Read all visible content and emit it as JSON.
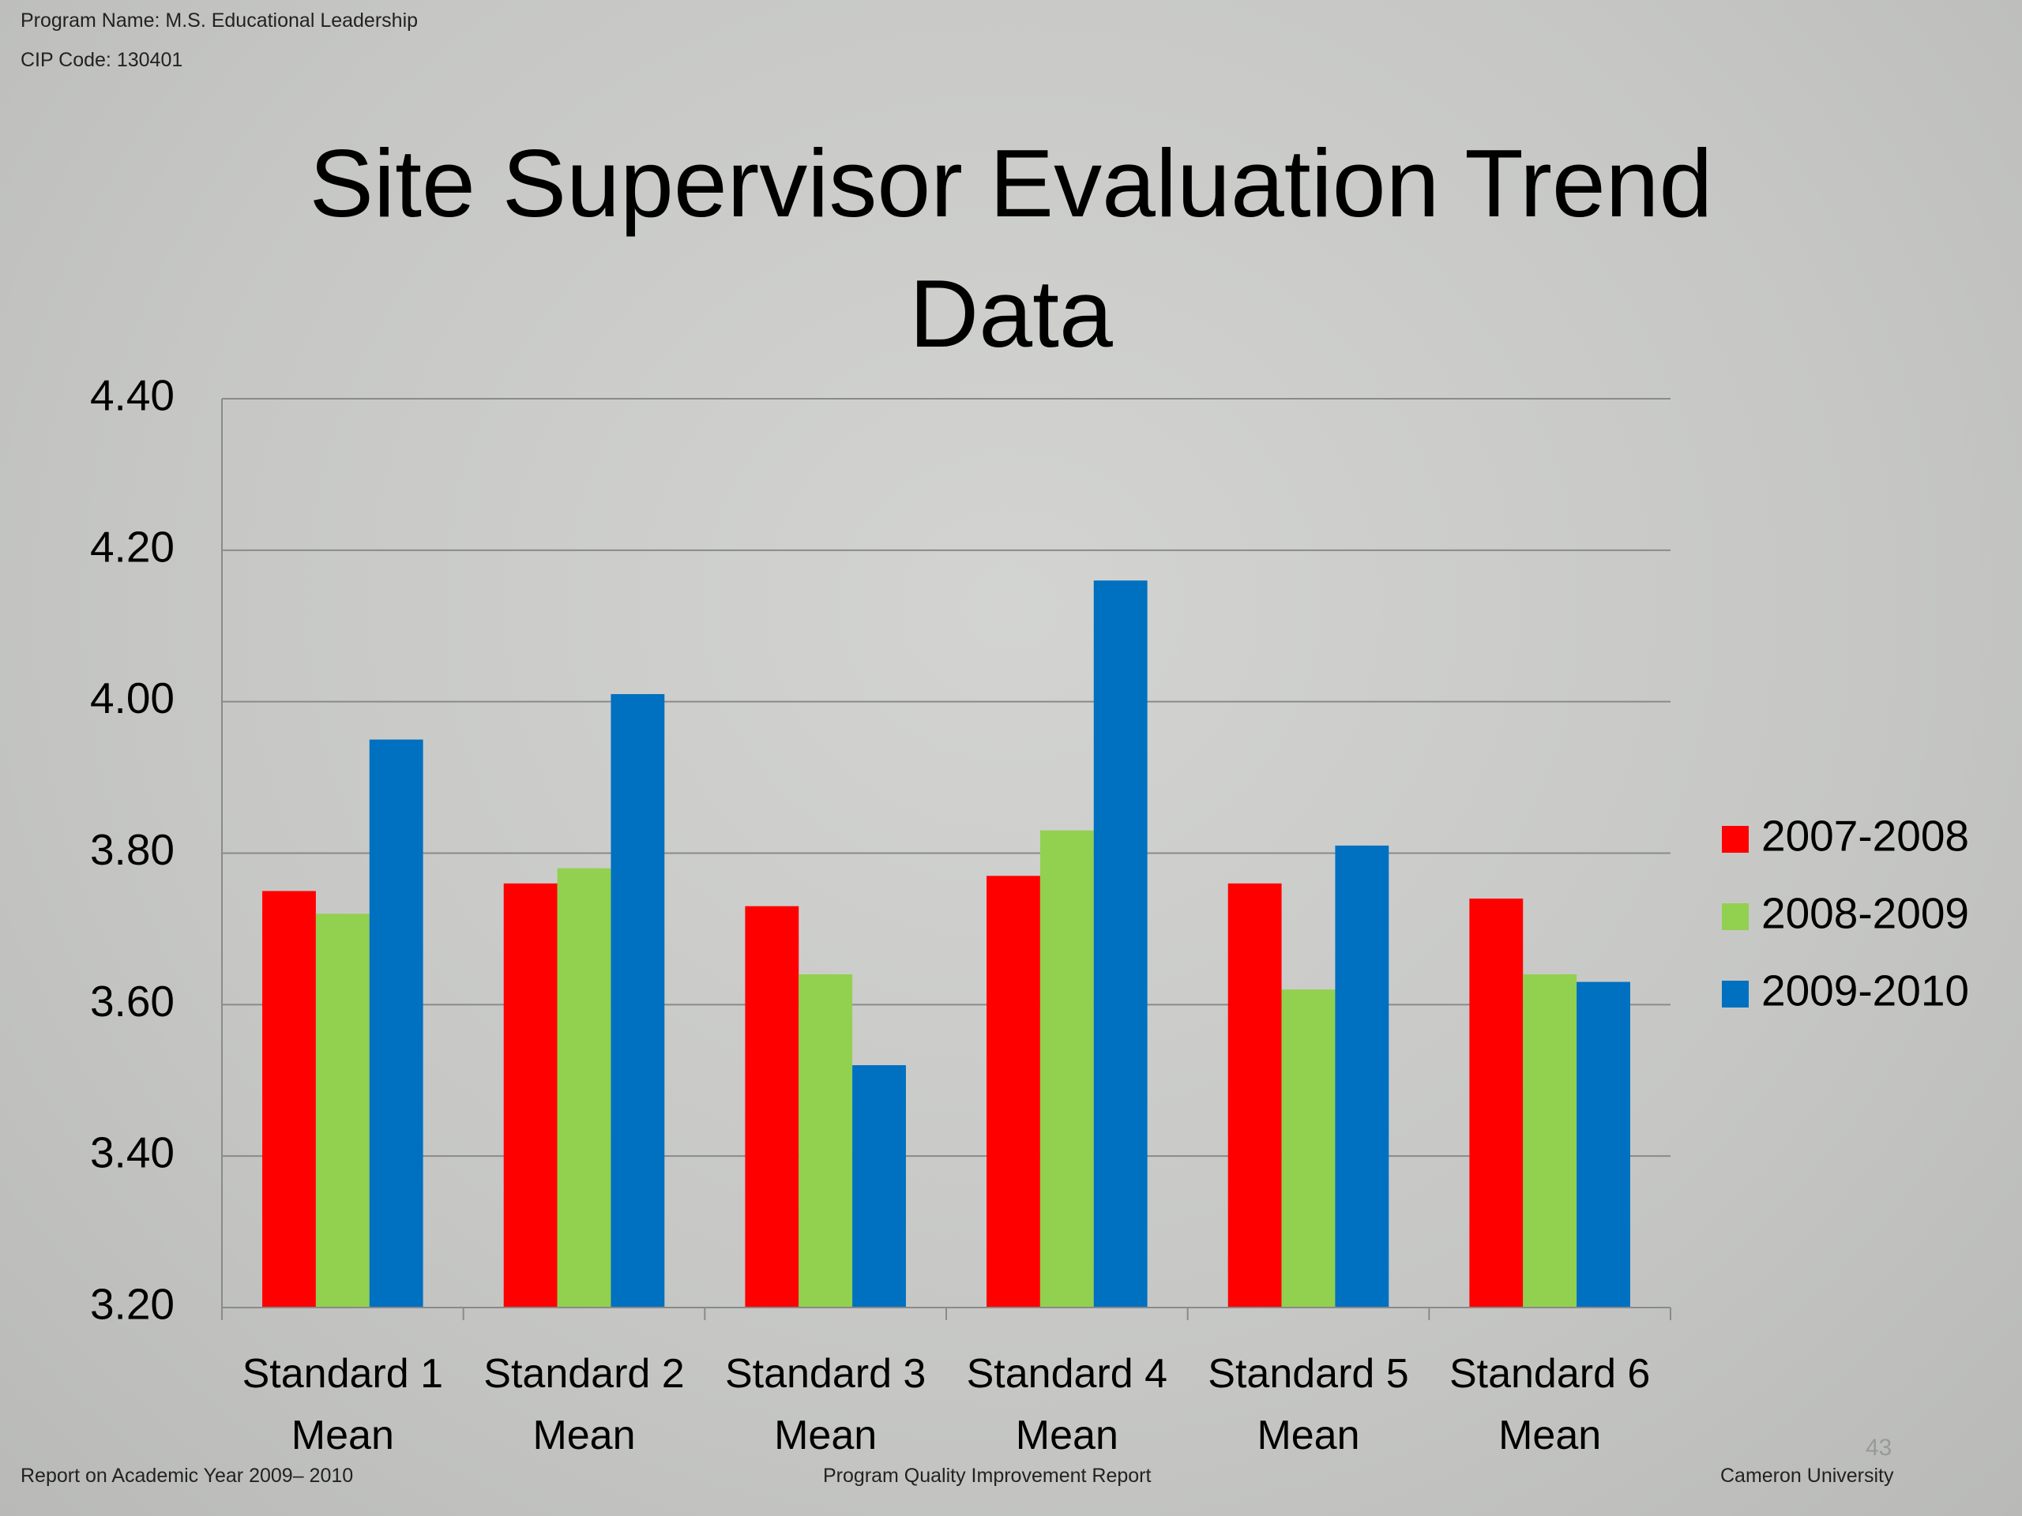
{
  "slide": {
    "program": "Program Name: M.S. Educational Leadership",
    "cip": "CIP Code: 130401",
    "footer_left": "Report on Academic Year 2009– 2010",
    "footer_center": "Program Quality Improvement Report",
    "footer_right": "Cameron University",
    "page_number": "43"
  },
  "chart_data": {
    "type": "bar",
    "title": "Site Supervisor Evaluation Trend Data",
    "categories": [
      "Standard 1 Mean",
      "Standard 2 Mean",
      "Standard 3 Mean",
      "Standard 4 Mean",
      "Standard 5 Mean",
      "Standard 6 Mean"
    ],
    "series": [
      {
        "name": "2007-2008",
        "color": "#ff0000",
        "values": [
          3.75,
          3.76,
          3.73,
          3.77,
          3.76,
          3.74
        ]
      },
      {
        "name": "2008-2009",
        "color": "#92d050",
        "values": [
          3.72,
          3.78,
          3.64,
          3.83,
          3.62,
          3.64
        ]
      },
      {
        "name": "2009-2010",
        "color": "#0070c0",
        "values": [
          3.95,
          4.01,
          3.52,
          4.16,
          3.81,
          3.63
        ]
      }
    ],
    "ylim": [
      3.2,
      4.4
    ],
    "yticks": [
      {
        "value": 3.2,
        "label": "3.20"
      },
      {
        "value": 3.4,
        "label": "3.40"
      },
      {
        "value": 3.6,
        "label": "3.60"
      },
      {
        "value": 3.8,
        "label": "3.80"
      },
      {
        "value": 4.0,
        "label": "4.00"
      },
      {
        "value": 4.2,
        "label": "4.20"
      },
      {
        "value": 4.4,
        "label": "4.40"
      }
    ],
    "grid": true,
    "legend": "right"
  }
}
